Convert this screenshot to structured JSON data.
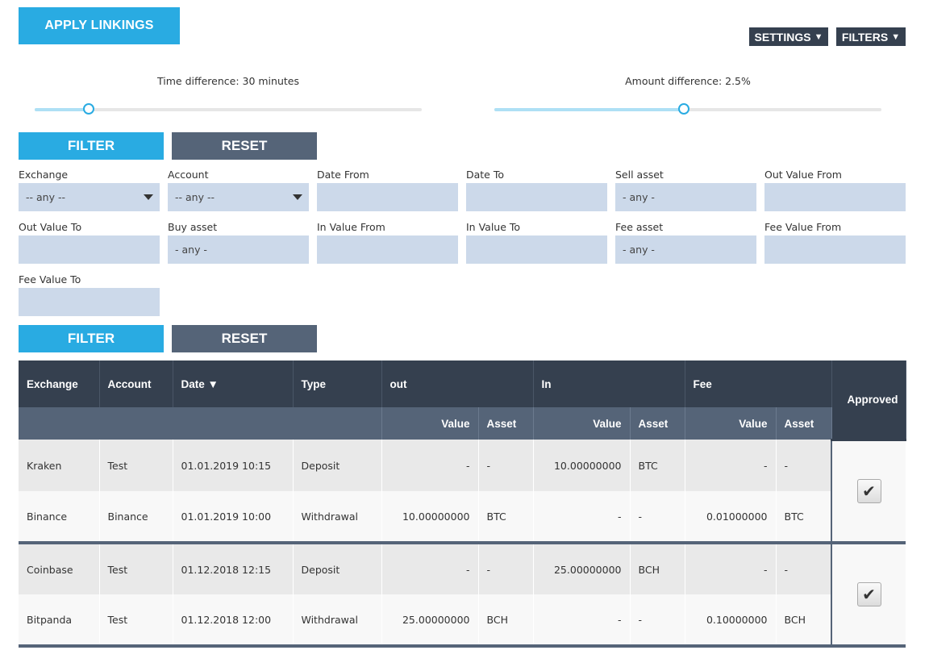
{
  "toolbar": {
    "apply_label": "APPLY LINKINGS",
    "settings_label": "SETTINGS",
    "filters_label": "FILTERS",
    "dropdown_glyph": "▼"
  },
  "sliders": {
    "time": {
      "label": "Time difference: 30 minutes",
      "fraction": 0.14
    },
    "amount": {
      "label": "Amount difference: 2.5%",
      "fraction": 0.49
    }
  },
  "filter_buttons": {
    "filter_label": "FILTER",
    "reset_label": "RESET"
  },
  "filters": [
    {
      "label": "Exchange",
      "value": "-- any --",
      "type": "select"
    },
    {
      "label": "Account",
      "value": "-- any --",
      "type": "select"
    },
    {
      "label": "Date From",
      "value": "",
      "type": "input"
    },
    {
      "label": "Date To",
      "value": "",
      "type": "input"
    },
    {
      "label": "Sell asset",
      "value": "- any -",
      "type": "input"
    },
    {
      "label": "Out Value From",
      "value": "",
      "type": "input"
    },
    {
      "label": "Out Value To",
      "value": "",
      "type": "input"
    },
    {
      "label": "Buy asset",
      "value": "- any -",
      "type": "input"
    },
    {
      "label": "In Value From",
      "value": "",
      "type": "input"
    },
    {
      "label": "In Value To",
      "value": "",
      "type": "input"
    },
    {
      "label": "Fee asset",
      "value": "- any -",
      "type": "input"
    },
    {
      "label": "Fee Value From",
      "value": "",
      "type": "input"
    },
    {
      "label": "Fee Value To",
      "value": "",
      "type": "input"
    }
  ],
  "table": {
    "headers": {
      "exchange": "Exchange",
      "account": "Account",
      "date": "Date ▼",
      "type": "Type",
      "out": "out",
      "in": "In",
      "fee": "Fee",
      "approved": "Approved",
      "value": "Value",
      "asset": "Asset"
    },
    "groups": [
      {
        "approved": true,
        "rows": [
          {
            "exchange": "Kraken",
            "account": "Test",
            "date": "01.01.2019 10:15",
            "type": "Deposit",
            "out_value": "-",
            "out_asset": "-",
            "in_value": "10.00000000",
            "in_asset": "BTC",
            "fee_value": "-",
            "fee_asset": "-"
          },
          {
            "exchange": "Binance",
            "account": "Binance",
            "date": "01.01.2019 10:00",
            "type": "Withdrawal",
            "out_value": "10.00000000",
            "out_asset": "BTC",
            "in_value": "-",
            "in_asset": "-",
            "fee_value": "0.01000000",
            "fee_asset": "BTC"
          }
        ]
      },
      {
        "approved": true,
        "rows": [
          {
            "exchange": "Coinbase",
            "account": "Test",
            "date": "01.12.2018 12:15",
            "type": "Deposit",
            "out_value": "-",
            "out_asset": "-",
            "in_value": "25.00000000",
            "in_asset": "BCH",
            "fee_value": "-",
            "fee_asset": "-"
          },
          {
            "exchange": "Bitpanda",
            "account": "Test",
            "date": "01.12.2018 12:00",
            "type": "Withdrawal",
            "out_value": "25.00000000",
            "out_asset": "BCH",
            "in_value": "-",
            "in_asset": "-",
            "fee_value": "0.10000000",
            "fee_asset": "BCH"
          }
        ]
      }
    ],
    "check_glyph": "✔"
  }
}
